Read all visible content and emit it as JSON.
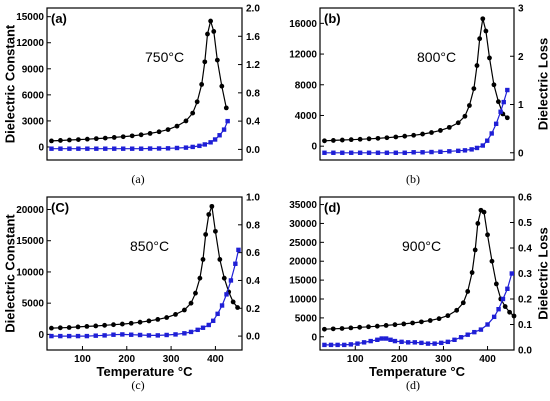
{
  "chart_data": [
    {
      "type": "line",
      "panel_label": "(a)",
      "annotation": "750°C",
      "caption": "(a)",
      "ylabel": "Dielectric Constant",
      "y2label": "",
      "xlabel": "",
      "xlim": [
        20,
        455
      ],
      "ylim": [
        -1500,
        16000
      ],
      "y2lim": [
        -0.15,
        2.0
      ],
      "xticks": [],
      "yticks": [
        0,
        3000,
        6000,
        9000,
        12000,
        15000
      ],
      "y2ticks": [
        "0.0",
        "0.4",
        "0.8",
        "1.2",
        "1.6",
        "2.0"
      ],
      "series": [
        {
          "color": "#000000",
          "marker": "circle",
          "axis": "left",
          "x": [
            30,
            50,
            70,
            90,
            110,
            130,
            150,
            170,
            190,
            210,
            230,
            250,
            270,
            290,
            310,
            330,
            345,
            355,
            365,
            372,
            378,
            385,
            392,
            400,
            410,
            420
          ],
          "y": [
            700,
            750,
            800,
            850,
            900,
            960,
            1020,
            1100,
            1180,
            1280,
            1400,
            1560,
            1750,
            2000,
            2400,
            3000,
            3900,
            5200,
            7200,
            9800,
            13000,
            14500,
            13300,
            10000,
            7000,
            4500
          ]
        },
        {
          "color": "#1f1fd6",
          "marker": "square",
          "axis": "right",
          "x": [
            30,
            50,
            70,
            90,
            110,
            130,
            150,
            170,
            190,
            210,
            230,
            250,
            270,
            290,
            310,
            330,
            345,
            360,
            372,
            385,
            395,
            405,
            415,
            423
          ],
          "y": [
            0.01,
            0.01,
            0.01,
            0.01,
            0.01,
            0.01,
            0.01,
            0.01,
            0.01,
            0.01,
            0.01,
            0.012,
            0.013,
            0.015,
            0.02,
            0.025,
            0.035,
            0.05,
            0.07,
            0.1,
            0.14,
            0.2,
            0.28,
            0.4
          ]
        }
      ]
    },
    {
      "type": "line",
      "panel_label": "(b)",
      "annotation": "800°C",
      "caption": "(b)",
      "ylabel": "",
      "y2label": "Dielectric Loss",
      "xlabel": "",
      "xlim": [
        20,
        455
      ],
      "ylim": [
        -1800,
        18000
      ],
      "y2lim": [
        -0.15,
        3.0
      ],
      "xticks": [],
      "yticks": [
        0,
        4000,
        8000,
        12000,
        16000
      ],
      "y2ticks": [
        "0",
        "1",
        "2",
        "3"
      ],
      "series": [
        {
          "color": "#000000",
          "marker": "circle",
          "axis": "left",
          "x": [
            30,
            50,
            70,
            90,
            110,
            130,
            150,
            170,
            190,
            210,
            230,
            250,
            270,
            290,
            310,
            330,
            345,
            355,
            365,
            372,
            378,
            385,
            392,
            400,
            410,
            420,
            430,
            440
          ],
          "y": [
            700,
            750,
            800,
            850,
            900,
            960,
            1020,
            1100,
            1200,
            1300,
            1420,
            1580,
            1780,
            2050,
            2450,
            3050,
            3900,
            5300,
            7500,
            10500,
            14000,
            16600,
            15000,
            11500,
            8000,
            5800,
            4200,
            3700
          ]
        },
        {
          "color": "#1f1fd6",
          "marker": "square",
          "axis": "right",
          "x": [
            30,
            50,
            70,
            90,
            110,
            130,
            150,
            170,
            190,
            210,
            230,
            250,
            270,
            290,
            310,
            330,
            345,
            360,
            372,
            385,
            395,
            405,
            415,
            425,
            432,
            440
          ],
          "y": [
            0.0,
            0.0,
            0.0,
            0.0,
            0.0,
            0.0,
            0.0,
            0.0,
            0.0,
            0.0,
            0.01,
            0.01,
            0.015,
            0.02,
            0.03,
            0.04,
            0.05,
            0.07,
            0.1,
            0.15,
            0.25,
            0.4,
            0.6,
            0.85,
            1.05,
            1.3
          ]
        }
      ]
    },
    {
      "type": "line",
      "panel_label": "(C)",
      "annotation": "850°C",
      "caption": "(c)",
      "ylabel": "Dielectric Constant",
      "y2label": "",
      "xlabel": "Temperature °C",
      "xlim": [
        20,
        460
      ],
      "ylim": [
        -2500,
        22000
      ],
      "y2lim": [
        -0.1,
        1.0
      ],
      "xticks": [
        100,
        200,
        300,
        400
      ],
      "yticks": [
        0,
        5000,
        10000,
        15000,
        20000
      ],
      "y2ticks": [
        "0.0",
        "0.2",
        "0.4",
        "0.6",
        "0.8",
        "1.0"
      ],
      "series": [
        {
          "color": "#000000",
          "marker": "circle",
          "axis": "left",
          "x": [
            30,
            50,
            70,
            90,
            110,
            130,
            150,
            170,
            190,
            210,
            230,
            250,
            270,
            290,
            310,
            330,
            345,
            355,
            365,
            372,
            378,
            385,
            392,
            400,
            410,
            420,
            430,
            440,
            450
          ],
          "y": [
            1000,
            1050,
            1100,
            1200,
            1280,
            1350,
            1450,
            1550,
            1650,
            1780,
            1950,
            2150,
            2400,
            2700,
            3200,
            3900,
            5000,
            6600,
            9000,
            12000,
            16000,
            19200,
            20500,
            16500,
            12000,
            9000,
            6800,
            5200,
            4300
          ]
        },
        {
          "color": "#1f1fd6",
          "marker": "square",
          "axis": "right",
          "x": [
            30,
            50,
            70,
            90,
            110,
            130,
            150,
            170,
            190,
            210,
            230,
            250,
            270,
            290,
            310,
            330,
            345,
            360,
            372,
            385,
            395,
            405,
            415,
            425,
            435,
            445,
            452
          ],
          "y": [
            0.0,
            0.0,
            0.0,
            0.0,
            0.0,
            0.003,
            0.005,
            0.01,
            0.012,
            0.01,
            0.008,
            0.005,
            0.005,
            0.008,
            0.012,
            0.02,
            0.03,
            0.045,
            0.06,
            0.08,
            0.11,
            0.16,
            0.22,
            0.3,
            0.4,
            0.52,
            0.62
          ]
        }
      ]
    },
    {
      "type": "line",
      "panel_label": "(d)",
      "annotation": "900°C",
      "caption": "(d)",
      "ylabel": "",
      "y2label": "Dielectric Loss",
      "xlabel": "Temperature °C",
      "xlim": [
        20,
        460
      ],
      "ylim": [
        -3500,
        37000
      ],
      "y2lim": [
        0.0,
        0.6
      ],
      "xticks": [
        100,
        200,
        300,
        400
      ],
      "yticks": [
        0,
        5000,
        10000,
        15000,
        20000,
        25000,
        30000,
        35000
      ],
      "y2ticks": [
        "0.0",
        "0.1",
        "0.2",
        "0.3",
        "0.4",
        "0.5",
        "0.6"
      ],
      "series": [
        {
          "color": "#000000",
          "marker": "circle",
          "axis": "left",
          "x": [
            30,
            50,
            70,
            90,
            110,
            130,
            150,
            170,
            190,
            210,
            230,
            250,
            270,
            290,
            310,
            330,
            345,
            355,
            365,
            372,
            378,
            385,
            392,
            400,
            410,
            420,
            430,
            440,
            450,
            460
          ],
          "y": [
            2000,
            2100,
            2200,
            2350,
            2500,
            2650,
            2800,
            3000,
            3200,
            3400,
            3650,
            3950,
            4300,
            4800,
            5600,
            7000,
            9000,
            12000,
            17000,
            23000,
            30000,
            33500,
            33000,
            27000,
            20000,
            14000,
            10000,
            8000,
            6500,
            5500
          ]
        },
        {
          "color": "#1f1fd6",
          "marker": "square",
          "axis": "right",
          "x": [
            30,
            45,
            60,
            75,
            90,
            105,
            120,
            135,
            150,
            160,
            170,
            180,
            190,
            205,
            220,
            235,
            250,
            265,
            280,
            295,
            310,
            325,
            340,
            355,
            370,
            385,
            400,
            415,
            425,
            435,
            445,
            455
          ],
          "y": [
            0.02,
            0.02,
            0.02,
            0.02,
            0.022,
            0.025,
            0.03,
            0.035,
            0.04,
            0.045,
            0.045,
            0.04,
            0.035,
            0.032,
            0.03,
            0.03,
            0.028,
            0.025,
            0.025,
            0.028,
            0.032,
            0.04,
            0.05,
            0.06,
            0.07,
            0.08,
            0.1,
            0.13,
            0.16,
            0.2,
            0.24,
            0.3
          ]
        }
      ]
    }
  ]
}
